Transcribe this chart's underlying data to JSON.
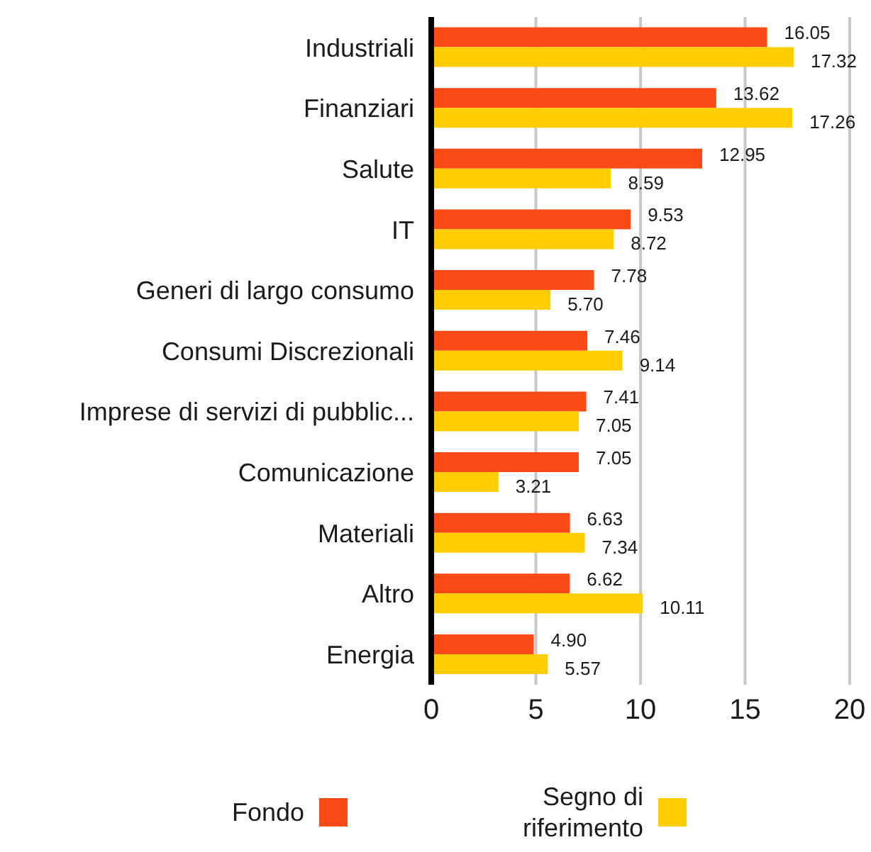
{
  "chart_data": {
    "type": "bar",
    "orientation": "horizontal",
    "categories": [
      "Industriali",
      "Finanziari",
      "Salute",
      "IT",
      "Generi di largo consumo",
      "Consumi Discrezionali",
      "Imprese di servizi di pubblic...",
      "Comunicazione",
      "Materiali",
      "Altro",
      "Energia"
    ],
    "series": [
      {
        "name": "Fondo",
        "color": "#fc4a17",
        "values": [
          16.05,
          13.62,
          12.95,
          9.53,
          7.78,
          7.46,
          7.41,
          7.05,
          6.63,
          6.62,
          4.9
        ],
        "value_labels": [
          "16.05",
          "13.62",
          "12.95",
          "9.53",
          "7.78",
          "7.46",
          "7.41",
          "7.05",
          "6.63",
          "6.62",
          "4.90"
        ]
      },
      {
        "name": "Segno di riferimento",
        "color": "#ffcd00",
        "values": [
          17.32,
          17.26,
          8.59,
          8.72,
          5.7,
          9.14,
          7.05,
          3.21,
          7.34,
          10.11,
          5.57
        ],
        "value_labels": [
          "17.32",
          "17.26",
          "8.59",
          "8.72",
          "5.70",
          "9.14",
          "7.05",
          "3.21",
          "7.34",
          "10.11",
          "5.57"
        ]
      }
    ],
    "xlim": [
      0,
      20
    ],
    "xticks": [
      0,
      5,
      10,
      15,
      20
    ],
    "grid": "x",
    "legend": "bottom"
  }
}
